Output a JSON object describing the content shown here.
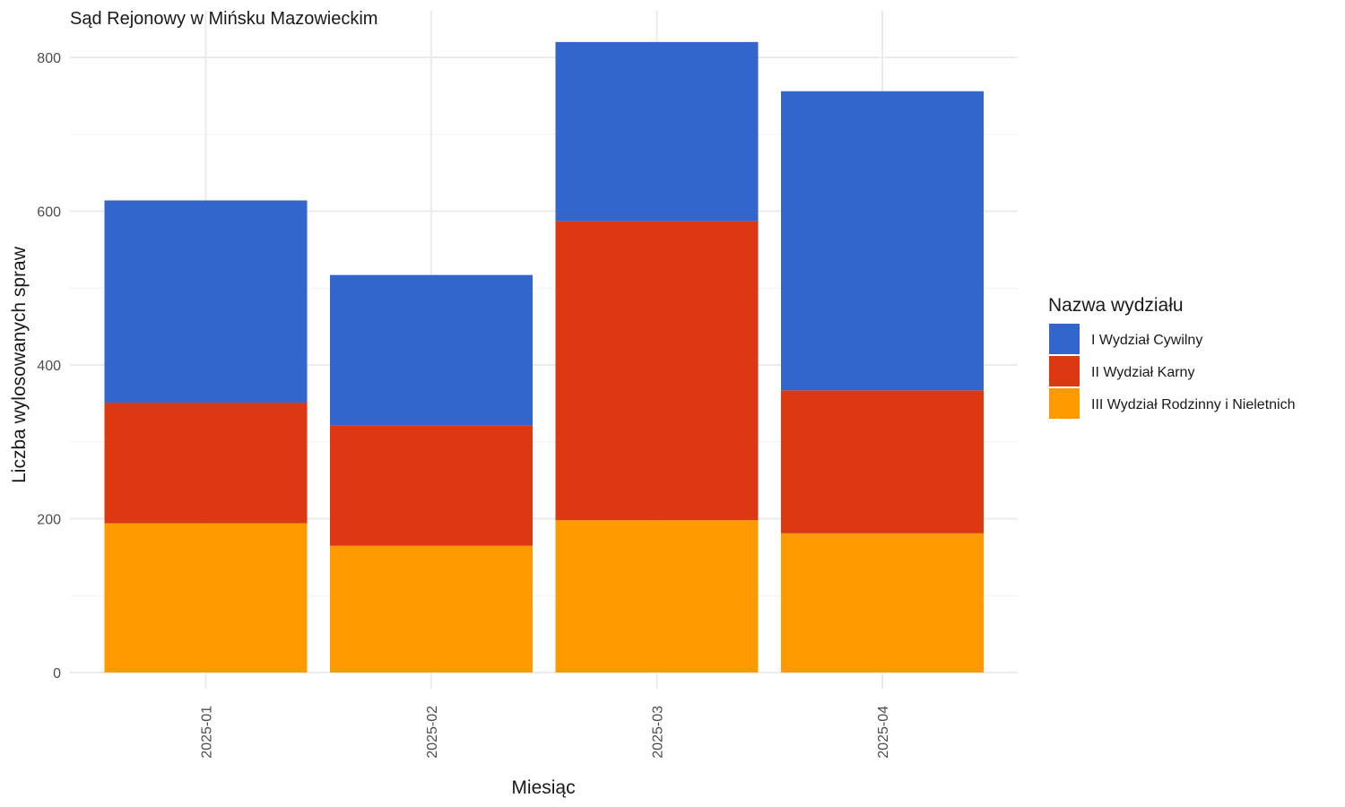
{
  "chart_data": {
    "type": "bar",
    "stacked": true,
    "title": "Sąd Rejonowy w Mińsku Mazowieckim",
    "xlabel": "Miesiąc",
    "ylabel": "Liczba wylosowanych spraw",
    "categories": [
      "2025-01",
      "2025-02",
      "2025-03",
      "2025-04"
    ],
    "ylim": [
      0,
      840
    ],
    "yticks": [
      0,
      200,
      400,
      600,
      800
    ],
    "grid": true,
    "legend": {
      "title": "Nazwa wydziału",
      "position": "right"
    },
    "series": [
      {
        "name": "III Wydział Rodzinny i Nieletnich",
        "color": "#FF9900",
        "values": [
          194,
          165,
          198,
          181
        ]
      },
      {
        "name": "II Wydział Karny",
        "color": "#DC3912",
        "values": [
          157,
          156,
          389,
          186
        ]
      },
      {
        "name": "I Wydział Cywilny",
        "color": "#3366CC",
        "values": [
          263,
          196,
          233,
          389
        ]
      }
    ],
    "legend_order": [
      "I Wydział Cywilny",
      "II Wydział Karny",
      "III Wydział Rodzinny i Nieletnich"
    ]
  }
}
